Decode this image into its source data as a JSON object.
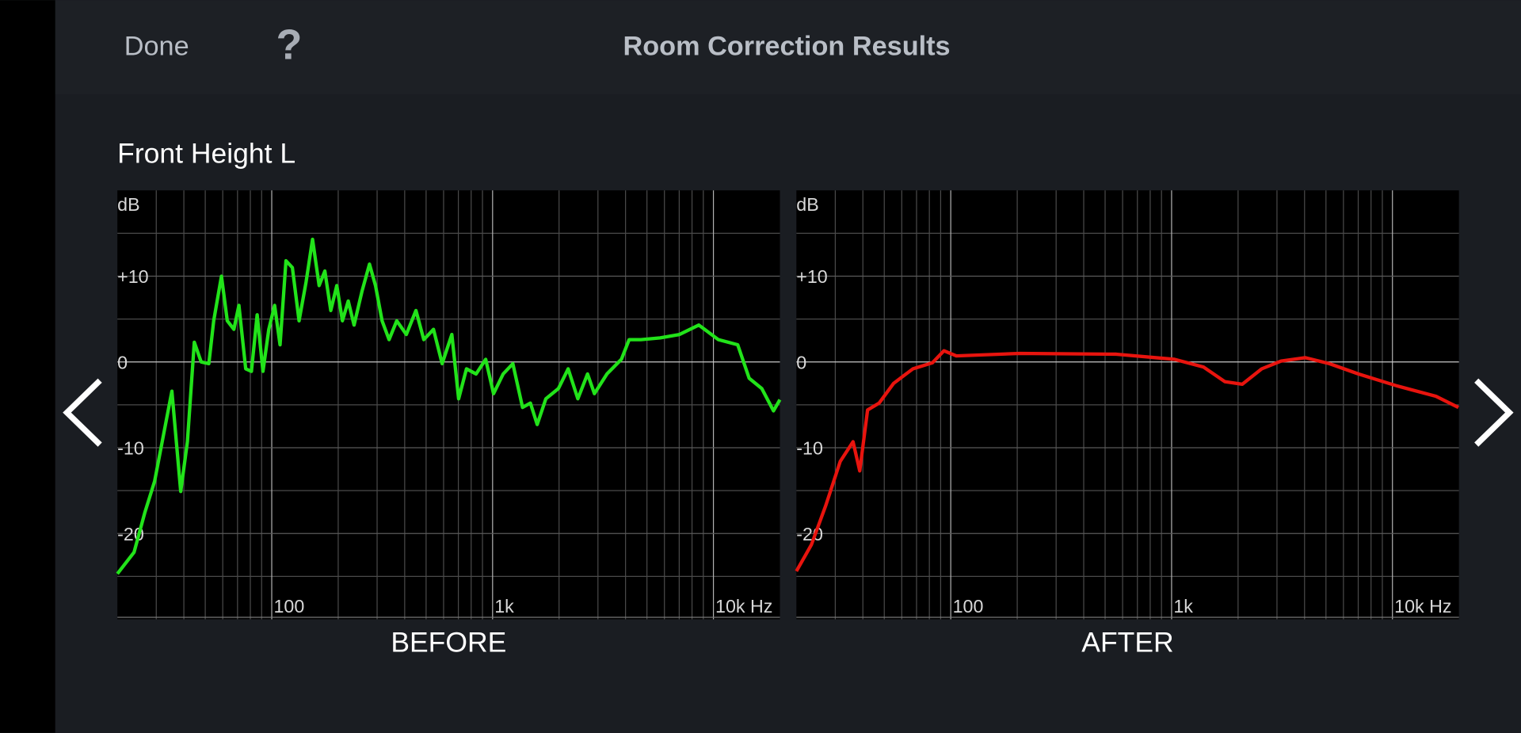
{
  "header": {
    "done": "Done",
    "help": "?",
    "title": "Room Correction Results"
  },
  "section_title": "Front Height L",
  "chart_data": [
    {
      "type": "line",
      "caption": "BEFORE",
      "ylabel": "dB",
      "log_x": true,
      "color": "#22e31a",
      "xlim": [
        20,
        20000
      ],
      "ylim": [
        -30,
        20
      ],
      "xticks": [
        {
          "value": 100,
          "label": "100"
        },
        {
          "value": 1000,
          "label": "1k"
        },
        {
          "value": 10000,
          "label": "10k Hz"
        }
      ],
      "yticks": [
        {
          "value": 10,
          "label": "+10"
        },
        0,
        -10,
        -20
      ],
      "xminor": [
        30,
        40,
        50,
        60,
        70,
        80,
        90,
        200,
        300,
        400,
        500,
        600,
        700,
        800,
        900,
        2000,
        3000,
        4000,
        5000,
        6000,
        7000,
        8000,
        9000
      ],
      "yminor": [
        15,
        5,
        -5,
        -15,
        -25
      ],
      "x": [
        20,
        23.8,
        26.6,
        29.5,
        35.3,
        38.7,
        41.5,
        44.6,
        47.9,
        51.9,
        54.6,
        59.2,
        62.9,
        67.4,
        71,
        76.2,
        80.9,
        85.9,
        91.3,
        97,
        103,
        109,
        116,
        124,
        133,
        143,
        153,
        164,
        174,
        185,
        197,
        209,
        222,
        236,
        256,
        277,
        295,
        316,
        340,
        368,
        407,
        450,
        488,
        540,
        591,
        654,
        702,
        762,
        842,
        931,
        1010,
        1117,
        1236,
        1367,
        1483,
        1592,
        1742,
        1987,
        2198,
        2432,
        2691,
        2891,
        3296,
        3831,
        4153,
        4691,
        5741,
        7018,
        8590,
        10520,
        12880,
        14520,
        16560,
        18710,
        20000
      ],
      "values": [
        -24.7,
        -22.2,
        -17.6,
        -13.9,
        -3.4,
        -15.1,
        -9.3,
        2.3,
        0,
        -0.2,
        4.8,
        10,
        4.8,
        3.8,
        6.6,
        -0.8,
        -1.1,
        5.5,
        -1.1,
        3.8,
        6.6,
        2,
        11.8,
        11,
        4.8,
        9.3,
        14.3,
        8.9,
        10.6,
        6,
        8.9,
        4.8,
        7.1,
        4.3,
        8.2,
        11.4,
        8.9,
        4.8,
        2.6,
        4.8,
        3.2,
        6,
        2.6,
        3.8,
        -0.2,
        3.2,
        -4.3,
        -0.8,
        -1.4,
        0.3,
        -3.7,
        -1.4,
        -0.2,
        -5.3,
        -4.8,
        -7.3,
        -4.3,
        -3.1,
        -0.8,
        -4.3,
        -1.4,
        -3.7,
        -1.4,
        0.3,
        2.6,
        2.6,
        2.8,
        3.2,
        4.3,
        2.6,
        2,
        -1.9,
        -3.1,
        -5.7,
        -4.4
      ]
    },
    {
      "type": "line",
      "caption": "AFTER",
      "ylabel": "dB",
      "log_x": true,
      "color": "#e8140e",
      "xlim": [
        20,
        20000
      ],
      "ylim": [
        -30,
        20
      ],
      "xticks": [
        {
          "value": 100,
          "label": "100"
        },
        {
          "value": 1000,
          "label": "1k"
        },
        {
          "value": 10000,
          "label": "10k Hz"
        }
      ],
      "yticks": [
        {
          "value": 10,
          "label": "+10"
        },
        0,
        -10,
        -20
      ],
      "xminor": [
        30,
        40,
        50,
        60,
        70,
        80,
        90,
        200,
        300,
        400,
        500,
        600,
        700,
        800,
        900,
        2000,
        3000,
        4000,
        5000,
        6000,
        7000,
        8000,
        9000
      ],
      "yminor": [
        15,
        5,
        -5,
        -15,
        -25
      ],
      "x": [
        20,
        23.4,
        27.2,
        31.6,
        36.1,
        38.7,
        42,
        47.4,
        55.1,
        67.4,
        82.6,
        93.1,
        106,
        205,
        562,
        1030,
        1396,
        1742,
        2089,
        2559,
        3133,
        4027,
        5188,
        7018,
        10520,
        15740,
        19900
      ],
      "values": [
        -24.4,
        -21.3,
        -16.7,
        -11.6,
        -9.3,
        -12.7,
        -5.6,
        -4.8,
        -2.5,
        -0.8,
        -0.1,
        1.3,
        0.7,
        1,
        0.9,
        0.3,
        -0.6,
        -2.3,
        -2.6,
        -0.8,
        0.1,
        0.5,
        -0.2,
        -1.4,
        -2.8,
        -4,
        -5.3
      ]
    }
  ]
}
